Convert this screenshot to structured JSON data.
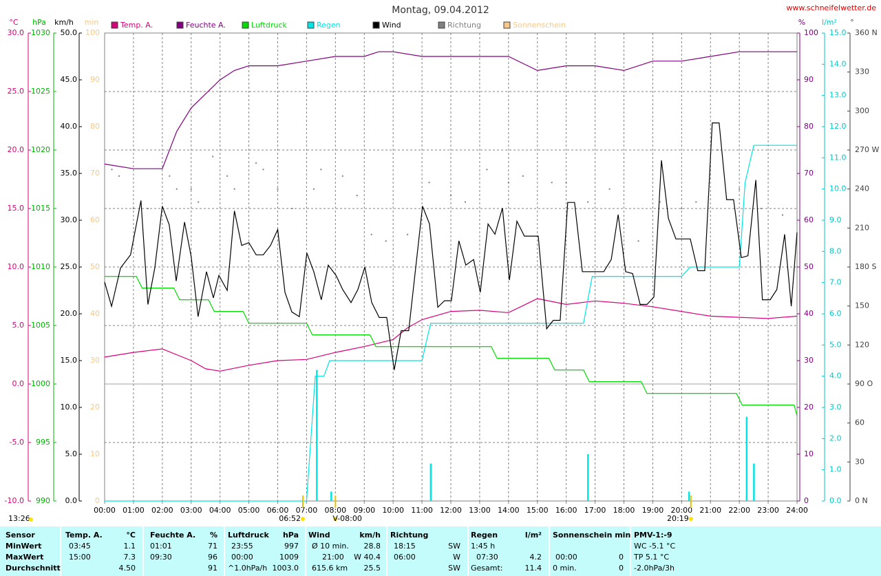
{
  "chart_data": {
    "type": "line",
    "title": "Montag, 09.04.2012",
    "source": "www.schneifelwetter.de",
    "grid": true,
    "xlim": [
      0,
      24
    ],
    "xticks": [
      {
        "value": 0,
        "label": "00:00"
      },
      {
        "value": 1,
        "label": "01:00"
      },
      {
        "value": 2,
        "label": "02:00"
      },
      {
        "value": 3,
        "label": "03:00"
      },
      {
        "value": 4,
        "label": "04:00"
      },
      {
        "value": 5,
        "label": "05:00"
      },
      {
        "value": 6,
        "label": "06:00"
      },
      {
        "value": 7,
        "label": "07:00"
      },
      {
        "value": 8,
        "label": "08:00"
      },
      {
        "value": 9,
        "label": "09:00"
      },
      {
        "value": 10,
        "label": "10:00"
      },
      {
        "value": 11,
        "label": "11:00"
      },
      {
        "value": 12,
        "label": "12:00"
      },
      {
        "value": 13,
        "label": "13:00"
      },
      {
        "value": 14,
        "label": "14:00"
      },
      {
        "value": 15,
        "label": "15:00"
      },
      {
        "value": 16,
        "label": "16:00"
      },
      {
        "value": 17,
        "label": "17:00"
      },
      {
        "value": 18,
        "label": "18:00"
      },
      {
        "value": 19,
        "label": "19:00"
      },
      {
        "value": 20,
        "label": "20:00"
      },
      {
        "value": 21,
        "label": "21:00"
      },
      {
        "value": 22,
        "label": "22:00"
      },
      {
        "value": 23,
        "label": "23:00"
      },
      {
        "value": 24,
        "label": "24:00"
      }
    ],
    "axes": {
      "y": {
        "label": "°C",
        "color": "#d8007a",
        "side": "left",
        "lim": [
          -10,
          30
        ],
        "ticks": [
          {
            "value": -10,
            "label": "-10.0"
          },
          {
            "value": -5,
            "label": "-5.0"
          },
          {
            "value": 0,
            "label": "0.0"
          },
          {
            "value": 5,
            "label": "5.0"
          },
          {
            "value": 10,
            "label": "10.0"
          },
          {
            "value": 15,
            "label": "15.0"
          },
          {
            "value": 20,
            "label": "20.0"
          },
          {
            "value": 25,
            "label": "25.0"
          },
          {
            "value": 30,
            "label": "30.0"
          }
        ]
      },
      "y2": {
        "label": "hPa",
        "color": "#00b400",
        "side": "left",
        "lim": [
          990,
          1030
        ],
        "ticks": [
          990,
          995,
          1000,
          1005,
          1010,
          1015,
          1020,
          1025,
          1030
        ]
      },
      "y3": {
        "label": "km/h",
        "color": "#000000",
        "side": "left",
        "lim": [
          0,
          50
        ],
        "ticks": [
          {
            "value": 0,
            "label": "0.0"
          },
          {
            "value": 5,
            "label": "5.0"
          },
          {
            "value": 10,
            "label": "10.0"
          },
          {
            "value": 15,
            "label": "15.0"
          },
          {
            "value": 20,
            "label": "20.0"
          },
          {
            "value": 25,
            "label": "25.0"
          },
          {
            "value": 30,
            "label": "30.0"
          },
          {
            "value": 35,
            "label": "35.0"
          },
          {
            "value": 40,
            "label": "40.0"
          },
          {
            "value": 45,
            "label": "45.0"
          },
          {
            "value": 50,
            "label": "50.0"
          }
        ]
      },
      "y4": {
        "label": "min",
        "color": "#f8c888",
        "side": "left",
        "lim": [
          0,
          100
        ],
        "ticks": [
          0,
          10,
          20,
          30,
          40,
          50,
          60,
          70,
          80,
          90,
          100
        ]
      },
      "y5": {
        "label": "%",
        "color": "#800080",
        "side": "right",
        "lim": [
          0,
          100
        ],
        "ticks": [
          0,
          10,
          20,
          30,
          40,
          50,
          60,
          70,
          80,
          90,
          100
        ]
      },
      "y6": {
        "label": "l/m²",
        "color": "#00c8c8",
        "side": "right",
        "lim": [
          0,
          15
        ],
        "ticks": [
          {
            "value": 0,
            "label": "0.0"
          },
          {
            "value": 1,
            "label": "1.0"
          },
          {
            "value": 2,
            "label": "2.0"
          },
          {
            "value": 3,
            "label": "3.0"
          },
          {
            "value": 4,
            "label": "4.0"
          },
          {
            "value": 5,
            "label": "5.0"
          },
          {
            "value": 6,
            "label": "6.0"
          },
          {
            "value": 7,
            "label": "7.0"
          },
          {
            "value": 8,
            "label": "8.0"
          },
          {
            "value": 9,
            "label": "9.0"
          },
          {
            "value": 10,
            "label": "10.0"
          },
          {
            "value": 11,
            "label": "11.0"
          },
          {
            "value": 12,
            "label": "12.0"
          },
          {
            "value": 13,
            "label": "13.0"
          },
          {
            "value": 14,
            "label": "14.0"
          },
          {
            "value": 15,
            "label": "15.0"
          }
        ]
      },
      "y7": {
        "label": "°",
        "color": "#404040",
        "side": "right",
        "lim": [
          0,
          360
        ],
        "ticks": [
          {
            "value": 0,
            "label": "0 N"
          },
          30,
          60,
          {
            "value": 90,
            "label": "90 O"
          },
          120,
          150,
          {
            "value": 180,
            "label": "180 S"
          },
          210,
          240,
          {
            "value": 270,
            "label": "270 W"
          },
          300,
          330,
          {
            "value": 360,
            "label": "360 N"
          }
        ]
      }
    },
    "series": [
      {
        "name": "Temp. A.",
        "color": "#d8007a",
        "type": "line",
        "axis": "y",
        "x": [
          0,
          1,
          2,
          3,
          3.5,
          4,
          5,
          6,
          7,
          8,
          9,
          10,
          10.5,
          11,
          12,
          13,
          14,
          15,
          16,
          17,
          18,
          19,
          20,
          21,
          22,
          23,
          24
        ],
        "values": [
          2.3,
          2.7,
          3.0,
          2.0,
          1.3,
          1.1,
          1.6,
          2.0,
          2.1,
          2.7,
          3.2,
          3.8,
          4.8,
          5.5,
          6.2,
          6.3,
          6.1,
          7.3,
          6.8,
          7.1,
          6.9,
          6.6,
          6.2,
          5.8,
          5.7,
          5.6,
          5.8
        ]
      },
      {
        "name": "Feuchte A.",
        "color": "#800080",
        "type": "line",
        "axis": "y5",
        "x": [
          0,
          1,
          2,
          2.5,
          3,
          3.5,
          4,
          4.5,
          5,
          6,
          7,
          8,
          9,
          9.5,
          10,
          11,
          12,
          13,
          14,
          15,
          16,
          17,
          18,
          19,
          20,
          21,
          22,
          23,
          24
        ],
        "values": [
          72,
          71,
          71,
          79,
          84,
          87,
          90,
          92,
          93,
          93,
          94,
          95,
          95,
          96,
          96,
          95,
          95,
          95,
          95,
          92,
          93,
          93,
          92,
          94,
          94,
          95,
          96,
          96,
          96
        ]
      },
      {
        "name": "Luftdruck",
        "color": "#00dc00",
        "type": "line",
        "axis": "y2",
        "x": [
          0,
          1.1,
          1.3,
          2.4,
          2.6,
          3.6,
          3.8,
          4.8,
          5.0,
          7.0,
          7.2,
          9.2,
          9.4,
          13.4,
          13.6,
          15.4,
          15.6,
          16.6,
          16.8,
          18.6,
          18.8,
          21.9,
          22.1,
          23.9,
          24
        ],
        "values": [
          1009.2,
          1009.2,
          1008.2,
          1008.2,
          1007.2,
          1007.2,
          1006.2,
          1006.2,
          1005.2,
          1005.2,
          1004.2,
          1004.2,
          1003.2,
          1003.2,
          1002.2,
          1002.2,
          1001.2,
          1001.2,
          1000.2,
          1000.2,
          999.2,
          999.2,
          998.2,
          998.2,
          997.3
        ]
      },
      {
        "name": "Regen",
        "color": "#00e4e4",
        "type": "line",
        "axis": "y6",
        "x": [
          0,
          7,
          7.3,
          7.6,
          7.8,
          11.0,
          11.3,
          16.6,
          16.9,
          20.0,
          20.3,
          22.0,
          22.2,
          22.5,
          24
        ],
        "values": [
          0,
          0,
          4.0,
          4.0,
          4.5,
          4.5,
          5.7,
          5.7,
          7.2,
          7.2,
          7.5,
          7.5,
          10.2,
          11.4,
          11.4
        ],
        "bar_x": [
          7.35,
          7.85,
          11.3,
          16.75,
          20.25,
          22.25,
          22.5
        ],
        "bar_values": [
          4.2,
          0.3,
          1.2,
          1.5,
          0.3,
          2.7,
          1.2
        ]
      },
      {
        "name": "Wind",
        "color": "#000000",
        "type": "line",
        "axis": "y3",
        "x": [
          0,
          0.24,
          0.55,
          0.9,
          1.26,
          1.5,
          1.74,
          2,
          2.24,
          2.48,
          2.77,
          3,
          3.24,
          3.53,
          3.77,
          3.96,
          4.25,
          4.5,
          4.75,
          5,
          5.25,
          5.5,
          5.75,
          6,
          6.25,
          6.49,
          6.75,
          7.01,
          7.25,
          7.51,
          7.75,
          8.02,
          8.25,
          8.54,
          8.78,
          9.02,
          9.26,
          9.52,
          9.78,
          10.04,
          10.28,
          10.54,
          11.02,
          11.26,
          11.55,
          11.78,
          12.02,
          12.28,
          12.52,
          12.79,
          13.02,
          13.29,
          13.53,
          13.79,
          14.03,
          14.29,
          14.55,
          14.79,
          15.03,
          15.32,
          15.55,
          15.79,
          16.05,
          16.29,
          16.56,
          17.3,
          17.56,
          17.8,
          18.06,
          18.3,
          18.56,
          18.8,
          19.04,
          19.3,
          19.54,
          19.8,
          20.3,
          20.56,
          20.8,
          21.06,
          21.3,
          21.56,
          21.8,
          22.07,
          22.3,
          22.57,
          22.8,
          23.07,
          23.3,
          23.57,
          23.8,
          24
        ],
        "values": [
          23.4,
          20.8,
          24.9,
          26.3,
          32.1,
          21,
          24.9,
          31.5,
          29.5,
          23.5,
          29.8,
          26.1,
          19.7,
          24.5,
          21.7,
          24.1,
          22.5,
          31,
          27.3,
          27.6,
          26.3,
          26.3,
          27.3,
          29,
          22.3,
          20.2,
          19.7,
          26.5,
          24.5,
          21.5,
          25.2,
          24.1,
          22.6,
          21.2,
          22.6,
          25,
          21.2,
          19.6,
          19.6,
          14,
          18.2,
          18.2,
          31.5,
          29.6,
          20.7,
          21.4,
          21.4,
          27.8,
          25.2,
          25.8,
          22.3,
          29.6,
          28.5,
          31.3,
          23.6,
          29.9,
          28.3,
          28.3,
          28.3,
          18.4,
          19.3,
          19.3,
          31.9,
          31.9,
          24.5,
          24.5,
          25.8,
          30.6,
          24.5,
          24.3,
          21,
          21,
          21.8,
          36.4,
          30.2,
          28,
          28,
          24.6,
          24.6,
          40.4,
          40.4,
          32.2,
          32.2,
          26,
          26.2,
          34.3,
          21.5,
          21.5,
          22.6,
          28.5,
          20.8,
          28.7
        ]
      },
      {
        "name": "Richtung",
        "color": "#808080",
        "type": "dots",
        "axis": "y7",
        "x": [
          0.25,
          0.5,
          1,
          1.5,
          2.25,
          2.5,
          3,
          3.25,
          3.75,
          4.25,
          4.5,
          5.25,
          5.5,
          6.0,
          6.5,
          7.25,
          7.5,
          8.25,
          8.75,
          9.25,
          9.75,
          10.5,
          11.25,
          12,
          12.5,
          13.25,
          14,
          14.5,
          15.5,
          16,
          16.75,
          17.5,
          18.5,
          19.25,
          20,
          20.5,
          21.25,
          22,
          22.75,
          23.5
        ],
        "values": [
          255,
          250,
          225,
          225,
          250,
          240,
          240,
          230,
          265,
          250,
          240,
          260,
          255,
          240,
          225,
          240,
          255,
          250,
          235,
          205,
          200,
          205,
          245,
          235,
          230,
          255,
          245,
          250,
          245,
          245,
          230,
          240,
          200,
          230,
          225,
          230,
          270,
          240,
          225,
          220
        ]
      },
      {
        "name": "Sonnenschein",
        "color": "#f8c888",
        "type": "line",
        "axis": "y4"
      }
    ],
    "annotations": [
      {
        "label": "13:26"
      },
      {
        "label": "06:52",
        "value": 6.87
      },
      {
        "label": "V-08:00",
        "value": 8
      },
      {
        "label": "20:19",
        "value": 20.32
      }
    ]
  },
  "table": {
    "rows": [
      [
        "Sensor",
        "Temp. A.",
        "°C",
        "Feuchte A.",
        "%",
        "Luftdruck",
        "hPa",
        "Wind",
        "km/h",
        "Richtung",
        "Regen",
        "l/m²",
        "Sonnenschein min",
        "PMV-1:-9"
      ],
      [
        "MinWert",
        "03:45",
        "1.1",
        "01:01",
        "71",
        "23:55",
        "997",
        "Ø 10 min.",
        "28.8",
        "18:15",
        "SW",
        "1:45 h",
        "WC -5.1 °C"
      ],
      [
        "MaxWert",
        "15:00",
        "7.3",
        "09:30",
        "96",
        "00:00",
        "1009",
        "21:00",
        "W 40.4",
        "06:00",
        "W",
        "07:30",
        "4.2",
        "00:00",
        "0",
        "TP 5.1 °C"
      ],
      [
        "Durchschnitt",
        "4.50",
        "91",
        "^1.0hPa/h",
        "1003.0",
        "615.6 km",
        "25.5",
        "SW",
        "Gesamt:",
        "11.4",
        "0 min.",
        "0",
        "-2.0hPa/3h"
      ]
    ]
  }
}
